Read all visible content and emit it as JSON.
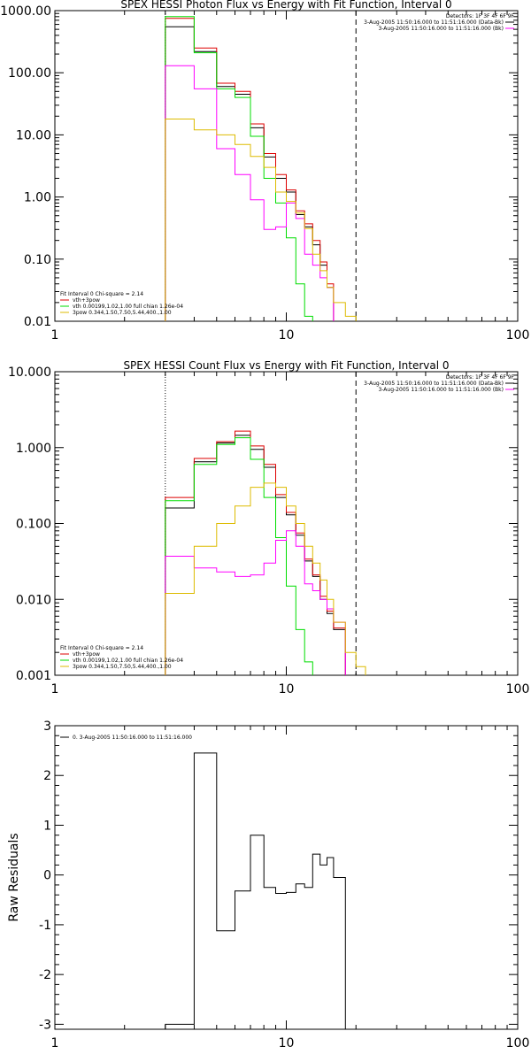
{
  "chart_data": [
    {
      "type": "line",
      "step": true,
      "title": "SPEX HESSI Photon Flux vs Energy with Fit Function, Interval 0",
      "xscale": "log",
      "yscale": "log",
      "xlim": [
        1,
        100
      ],
      "ylim": [
        0.01,
        1000
      ],
      "xticks": [
        "1",
        "10",
        "100"
      ],
      "yticks": [
        "0.01",
        "0.10",
        "1.00",
        "10.00",
        "100.00",
        "1000.00"
      ],
      "xedges": [
        3,
        4,
        5,
        6,
        7,
        8,
        9,
        10,
        11,
        12,
        13,
        14,
        15,
        16,
        18,
        20,
        22,
        25
      ],
      "series": [
        {
          "color": "#000000",
          "values": [
            550,
            220,
            60,
            45,
            13,
            4.4,
            2.0,
            1.2,
            0.52,
            0.33,
            0.17,
            0.08,
            0.035,
            0.0,
            0.0,
            0.0,
            0.0
          ]
        },
        {
          "color": "#dd0000",
          "values": [
            750,
            250,
            68,
            50,
            15,
            5.0,
            2.3,
            1.3,
            0.6,
            0.37,
            0.2,
            0.09,
            0.04,
            0.0,
            0.0,
            0.0,
            0.0
          ]
        },
        {
          "color": "#00dd00",
          "values": [
            800,
            210,
            55,
            40,
            9.5,
            2.0,
            0.8,
            0.22,
            0.04,
            0.012,
            0.0,
            0.0,
            0.0,
            0.0,
            0.0,
            0.0,
            0.0
          ]
        },
        {
          "color": "#ff00ff",
          "values": [
            130,
            55,
            6.0,
            2.3,
            0.9,
            0.3,
            0.33,
            0.8,
            0.45,
            0.12,
            0.08,
            0.05,
            0.035,
            0.0,
            0.0,
            0.0,
            0.0
          ]
        },
        {
          "color": "#ddbb00",
          "values": [
            18,
            12,
            10,
            7.0,
            4.5,
            3.0,
            1.2,
            0.85,
            0.55,
            0.31,
            0.12,
            0.065,
            0.035,
            0.02,
            0.012,
            0.0,
            0.0
          ]
        }
      ],
      "vlines": [
        {
          "x": 3,
          "style": "dotted"
        },
        {
          "x": 20,
          "style": "dashed"
        }
      ],
      "annotation_right": [
        {
          "text": "Detectors: 1F 3F 4F 6F 9F"
        },
        {
          "text": "3-Aug-2005 11:50:16.000 to 11:51:16.000 (Data-Bk)",
          "color": "#000000"
        },
        {
          "text": "3-Aug-2005 11:50:16.000 to 11:51:16.000 (Bk)",
          "color": "#ff00ff"
        }
      ],
      "legend": [
        {
          "text": "Fit Interval 0   Chi-square = 2.14"
        },
        {
          "text": "vth+3pow",
          "color": "#dd0000"
        },
        {
          "text": "vth 0.00199,1.02,1.00  full chian 1.26e-04",
          "color": "#00dd00"
        },
        {
          "text": "3pow 0.344,1.50,7.50,5.44,400.,1.00",
          "color": "#ddbb00"
        }
      ]
    },
    {
      "type": "line",
      "step": true,
      "title": "SPEX HESSI Count Flux vs Energy with Fit Function, Interval 0",
      "xscale": "log",
      "yscale": "log",
      "xlim": [
        1,
        100
      ],
      "ylim": [
        0.001,
        10
      ],
      "xticks": [
        "1",
        "10",
        "100"
      ],
      "yticks": [
        "0.001",
        "0.010",
        "0.100",
        "1.000",
        "10.000"
      ],
      "xedges": [
        3,
        4,
        5,
        6,
        7,
        8,
        9,
        10,
        11,
        12,
        13,
        14,
        15,
        16,
        18,
        20,
        22,
        25
      ],
      "series": [
        {
          "color": "#000000",
          "values": [
            0.16,
            0.65,
            1.15,
            1.45,
            0.95,
            0.55,
            0.22,
            0.13,
            0.07,
            0.032,
            0.02,
            0.01,
            0.0065,
            0.004,
            0.0,
            0.0,
            0.0
          ]
        },
        {
          "color": "#dd0000",
          "values": [
            0.22,
            0.72,
            1.2,
            1.65,
            1.05,
            0.6,
            0.24,
            0.14,
            0.075,
            0.034,
            0.021,
            0.011,
            0.007,
            0.0042,
            0.0,
            0.0,
            0.0
          ]
        },
        {
          "color": "#00dd00",
          "values": [
            0.2,
            0.6,
            1.1,
            1.35,
            0.7,
            0.22,
            0.065,
            0.015,
            0.004,
            0.0015,
            0.0,
            0.0,
            0.0,
            0.0,
            0.0,
            0.0,
            0.0
          ]
        },
        {
          "color": "#ff00ff",
          "values": [
            0.037,
            0.026,
            0.023,
            0.02,
            0.021,
            0.03,
            0.06,
            0.08,
            0.05,
            0.016,
            0.013,
            0.01,
            0.0075,
            0.005,
            0.0,
            0.0,
            0.0
          ]
        },
        {
          "color": "#ddbb00",
          "values": [
            0.012,
            0.05,
            0.1,
            0.17,
            0.3,
            0.34,
            0.3,
            0.17,
            0.1,
            0.05,
            0.03,
            0.018,
            0.01,
            0.005,
            0.002,
            0.0013,
            0.0
          ]
        }
      ],
      "vlines": [
        {
          "x": 3,
          "style": "dotted"
        },
        {
          "x": 20,
          "style": "dashed"
        }
      ],
      "annotation_right": [
        {
          "text": "Detectors: 1F 3F 4F 6F 9F"
        },
        {
          "text": "3-Aug-2005 11:50:16.000 to 11:51:16.000 (Data-Bk)",
          "color": "#000000"
        },
        {
          "text": "3-Aug-2005 11:50:16.000 to 11:51:16.000 (Bk)",
          "color": "#ff00ff"
        }
      ],
      "legend": [
        {
          "text": "Fit Interval 0   Chi-square = 2.14"
        },
        {
          "text": "vth+3pow",
          "color": "#dd0000"
        },
        {
          "text": "vth 0.00199,1.02,1.00  full chian 1.26e-04",
          "color": "#00dd00"
        },
        {
          "text": "3pow 0.344,1.50,7.50,5.44,400.,1.00",
          "color": "#ddbb00"
        }
      ]
    },
    {
      "type": "line",
      "step": true,
      "title": "",
      "xscale": "log",
      "yscale": "linear",
      "ylabel": "Raw Residuals",
      "xlim": [
        1,
        100
      ],
      "ylim": [
        -3.1,
        3
      ],
      "xticks": [
        "1",
        "10",
        "100"
      ],
      "yticks": [
        "-3",
        "-2",
        "-1",
        "0",
        "1",
        "2",
        "3"
      ],
      "xedges": [
        3,
        4,
        5,
        6,
        7,
        8,
        9,
        10,
        11,
        12,
        13,
        14,
        15,
        16,
        18,
        20
      ],
      "series": [
        {
          "color": "#000000",
          "values": [
            -3.0,
            2.45,
            -1.12,
            -0.32,
            0.8,
            -0.25,
            -0.37,
            -0.35,
            -0.18,
            -0.25,
            0.42,
            0.2,
            0.35,
            -0.05,
            -3.1
          ]
        }
      ],
      "legend": [
        {
          "text": "0. 3-Aug-2005 11:50:16.000 to 11:51:16.000",
          "color": "#000000"
        }
      ]
    }
  ]
}
